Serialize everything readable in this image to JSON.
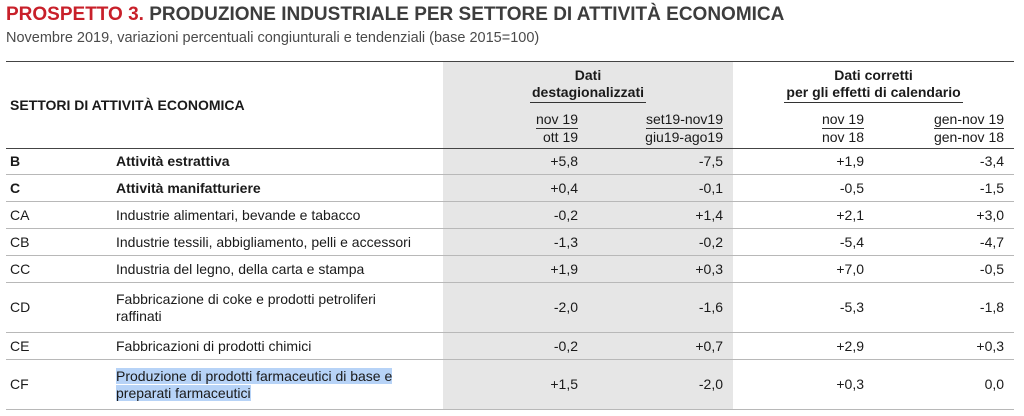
{
  "header": {
    "title_lead": "PROSPETTO 3.",
    "title_rest": " PRODUZIONE INDUSTRIALE PER SETTORE DI ATTIVITÀ ECONOMICA",
    "subtitle": "Novembre 2019, variazioni percentuali congiunturali e tendenziali (base 2015=100)"
  },
  "table": {
    "sector_header": "SETTORI DI ATTIVITÀ ECONOMICA",
    "group1": {
      "line1": "Dati",
      "line2": "destagionalizzati"
    },
    "group2": {
      "line1": "Dati corretti",
      "line2": "per gli effetti di calendario"
    },
    "comparisons": [
      {
        "top": "nov 19",
        "bottom": "ott 19"
      },
      {
        "top": "set19-nov19",
        "bottom": "giu19-ago19"
      },
      {
        "top": "nov 19",
        "bottom": "nov 18"
      },
      {
        "top": "gen-nov 19",
        "bottom": "gen-nov 18"
      }
    ],
    "rows": [
      {
        "code": "B",
        "name": "Attività estrattiva",
        "bold": true,
        "values": [
          "+5,8",
          "-7,5",
          "+1,9",
          "-3,4"
        ]
      },
      {
        "code": "C",
        "name": "Attività manifatturiere",
        "bold": true,
        "values": [
          "+0,4",
          "-0,1",
          "-0,5",
          "-1,5"
        ]
      },
      {
        "code": "CA",
        "name": "Industrie alimentari, bevande e tabacco",
        "values": [
          "-0,2",
          "+1,4",
          "+2,1",
          "+3,0"
        ]
      },
      {
        "code": "CB",
        "name": "Industrie tessili, abbigliamento, pelli e accessori",
        "values": [
          "-1,3",
          "-0,2",
          "-5,4",
          "-4,7"
        ]
      },
      {
        "code": "CC",
        "name": "Industria del legno, della carta e stampa",
        "values": [
          "+1,9",
          "+0,3",
          "+7,0",
          "-0,5"
        ]
      },
      {
        "code": "CD",
        "name_line1": "Fabbricazione di coke e prodotti petroliferi",
        "name_line2": "raffinati",
        "values": [
          "-2,0",
          "-1,6",
          "-5,3",
          "-1,8"
        ]
      },
      {
        "code": "CE",
        "name": "Fabbricazioni di prodotti chimici",
        "values": [
          "-0,2",
          "+0,7",
          "+2,9",
          "+0,3"
        ]
      },
      {
        "code": "CF",
        "name_line1": "Produzione di prodotti farmaceutici di base e",
        "name_line2": "preparati farmaceutici",
        "values": [
          "+1,5",
          "-2,0",
          "+0,3",
          "0,0"
        ]
      }
    ]
  },
  "colors": {
    "title_accent": "#c8202a",
    "column_shade": "#e6e6e6",
    "selection_highlight": "#b7d3f7"
  }
}
